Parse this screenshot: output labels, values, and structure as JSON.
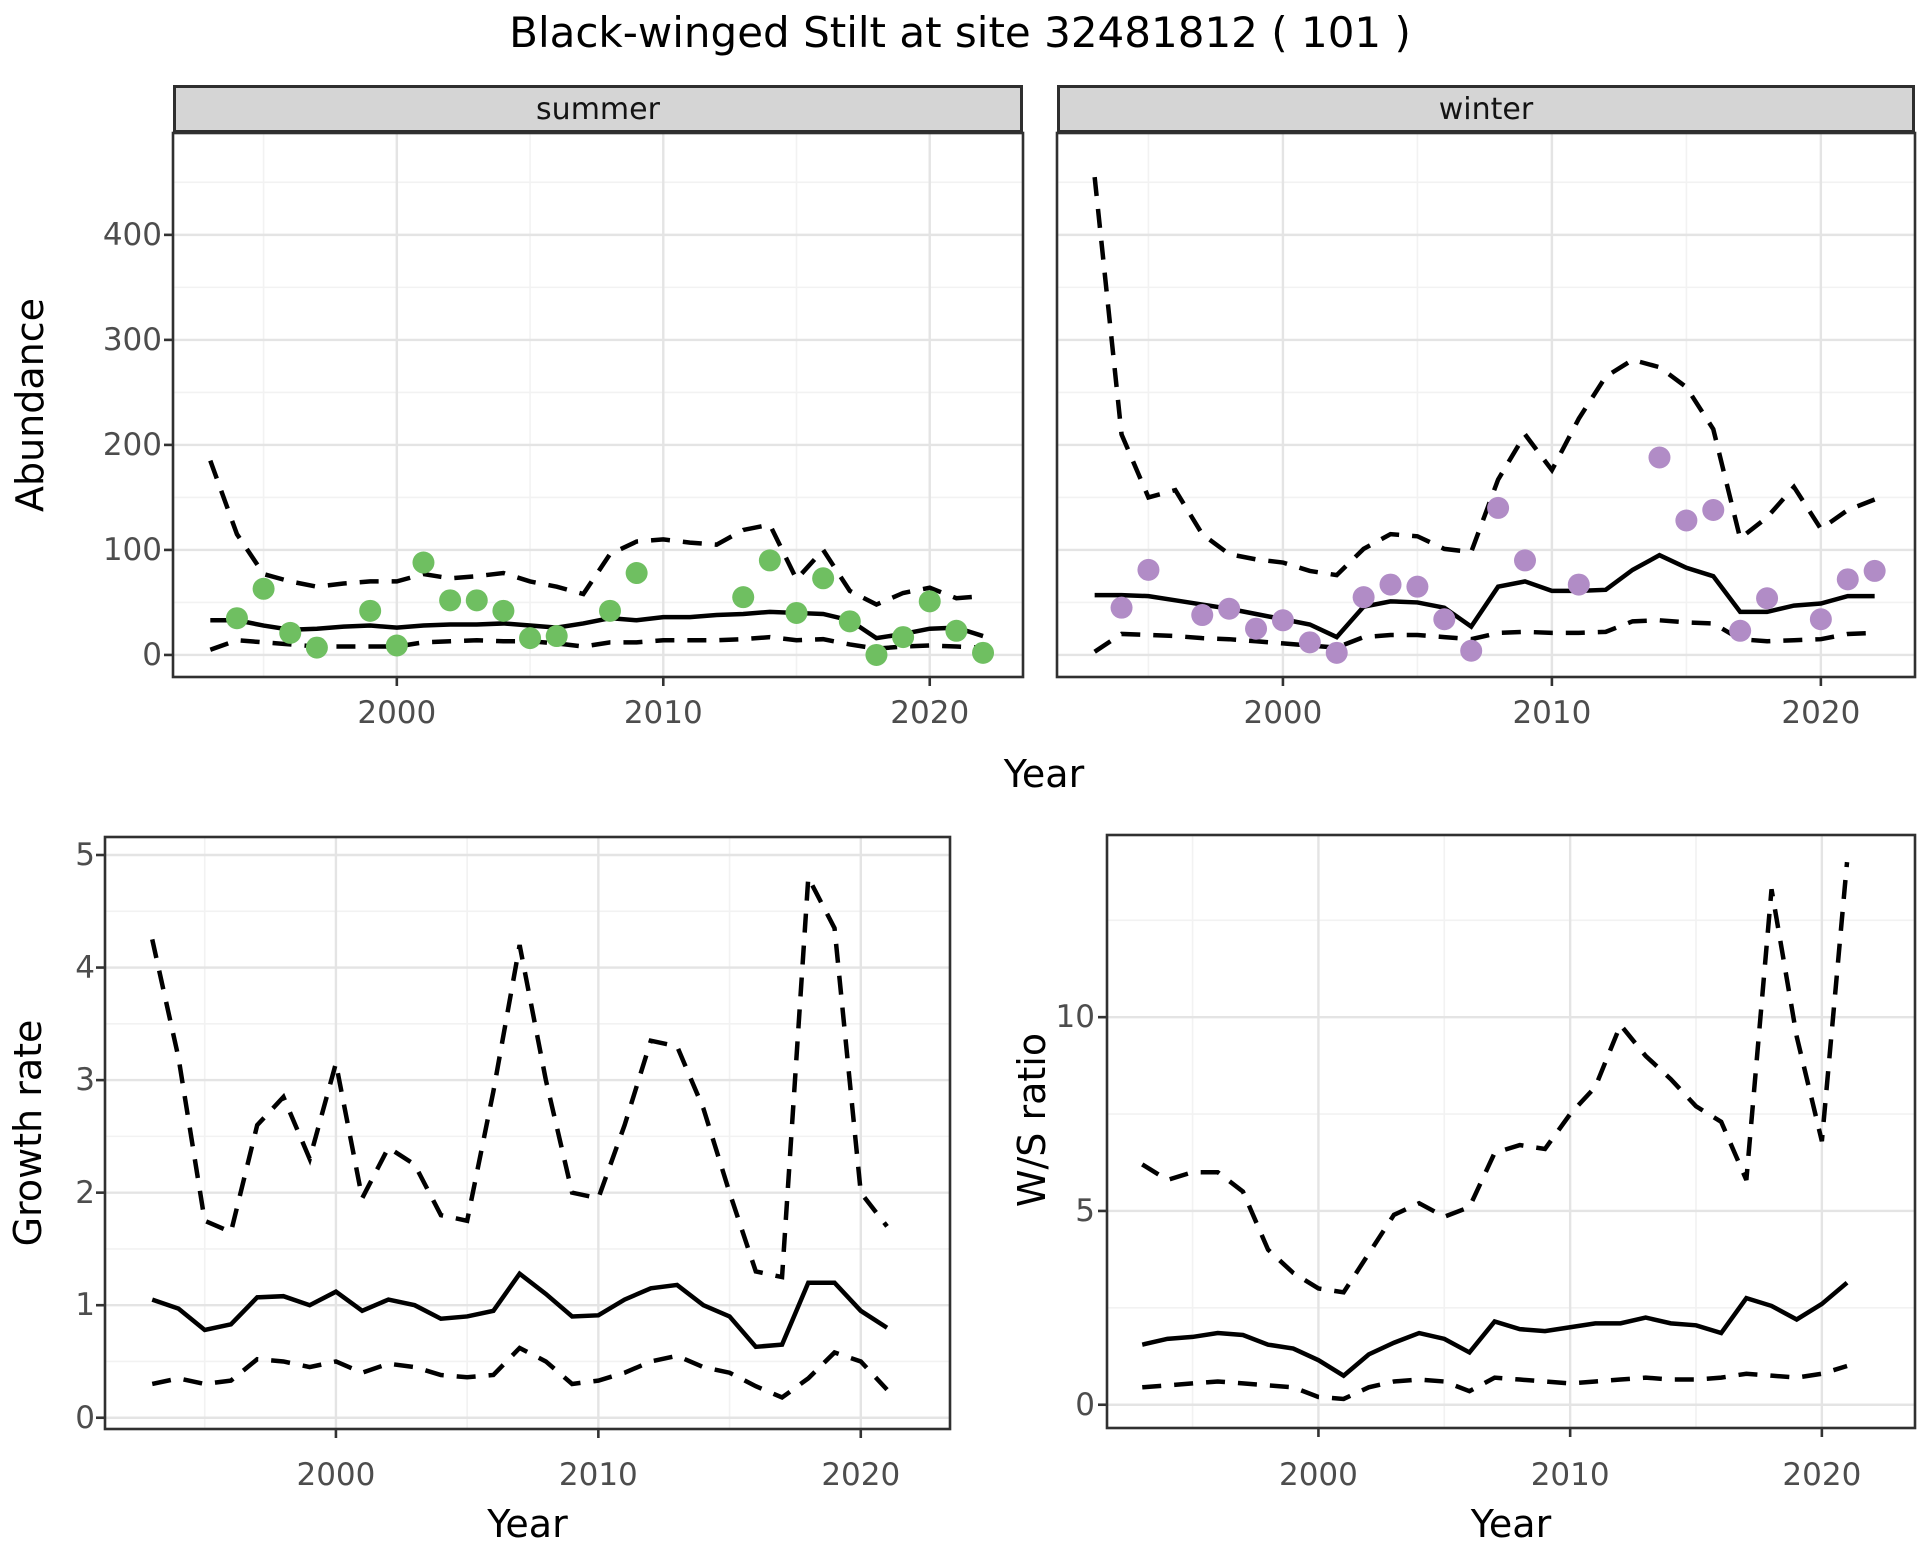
{
  "title": "Black-winged Stilt at site 32481812 ( 101 )",
  "top_row": {
    "ylabel": "Abundance",
    "xlabel": "Year"
  },
  "bottom_left": {
    "ylabel": "Growth rate",
    "xlabel": "Year"
  },
  "bottom_right": {
    "ylabel": "W/S ratio",
    "xlabel": "Year"
  },
  "colors": {
    "summer_points": "#6fbf61",
    "winter_points": "#b18cc6",
    "line": "#000000",
    "panel_border": "#303030",
    "strip_bg": "#d5d5d5",
    "grid_major": "#e4e4e4",
    "grid_minor": "#f2f2f2",
    "tick_text": "#4d4d4d"
  },
  "chart_data": [
    {
      "type": "line",
      "facet": "summer",
      "title": "Abundance - summer facet",
      "xlabel": "Year",
      "ylabel": "Abundance",
      "xlim": [
        1991.6,
        2023.5
      ],
      "ylim": [
        -21,
        497
      ],
      "xticks": [
        2000,
        2010,
        2020
      ],
      "yticks": [
        0,
        100,
        200,
        300,
        400
      ],
      "xticks_minor": [
        1995,
        2005,
        2015
      ],
      "yticks_minor": [
        50,
        150,
        250,
        350,
        450
      ],
      "x": [
        1993,
        1994,
        1995,
        1996,
        1997,
        1998,
        1999,
        2000,
        2001,
        2002,
        2003,
        2004,
        2005,
        2006,
        2007,
        2008,
        2009,
        2010,
        2011,
        2012,
        2013,
        2014,
        2015,
        2016,
        2017,
        2018,
        2019,
        2020,
        2021,
        2022
      ],
      "series": [
        {
          "name": "median",
          "style": "solid",
          "values": [
            33,
            33,
            28,
            24,
            25,
            27,
            28,
            26,
            28,
            29,
            29,
            30,
            28,
            26,
            30,
            35,
            33,
            36,
            36,
            38,
            39,
            41,
            40,
            39,
            33,
            16,
            20,
            25,
            26,
            18
          ]
        },
        {
          "name": "upper_ci",
          "style": "dashed",
          "values": [
            185,
            115,
            77,
            70,
            65,
            68,
            70,
            70,
            77,
            73,
            75,
            78,
            70,
            65,
            58,
            96,
            108,
            110,
            107,
            105,
            119,
            124,
            72,
            100,
            61,
            48,
            59,
            64,
            54,
            56
          ]
        },
        {
          "name": "lower_ci",
          "style": "dashed",
          "values": [
            5,
            14,
            12,
            10,
            8,
            8,
            8,
            8,
            12,
            13,
            14,
            13,
            13,
            11,
            8,
            12,
            12,
            14,
            14,
            14,
            15,
            17,
            14,
            15,
            10,
            6,
            8,
            9,
            8,
            7
          ]
        }
      ],
      "points": {
        "color": "#6fbf61",
        "x": [
          1994,
          1995,
          1996,
          1997,
          1999,
          2000,
          2001,
          2002,
          2003,
          2004,
          2005,
          2006,
          2008,
          2009,
          2013,
          2014,
          2015,
          2016,
          2017,
          2018,
          2019,
          2020,
          2021,
          2022
        ],
        "y": [
          35,
          63,
          21,
          7,
          42,
          9,
          88,
          52,
          52,
          42,
          16,
          18,
          42,
          78,
          55,
          90,
          40,
          73,
          32,
          0,
          17,
          51,
          23,
          2
        ]
      }
    },
    {
      "type": "line",
      "facet": "winter",
      "title": "Abundance - winter facet",
      "xlabel": "Year",
      "ylabel": "Abundance",
      "xlim": [
        1991.6,
        2023.5
      ],
      "ylim": [
        -21,
        497
      ],
      "xticks": [
        2000,
        2010,
        2020
      ],
      "yticks": [
        0,
        100,
        200,
        300,
        400
      ],
      "xticks_minor": [
        1995,
        2005,
        2015
      ],
      "yticks_minor": [
        50,
        150,
        250,
        350,
        450
      ],
      "x": [
        1993,
        1994,
        1995,
        1996,
        1997,
        1998,
        1999,
        2000,
        2001,
        2002,
        2003,
        2004,
        2005,
        2006,
        2007,
        2008,
        2009,
        2010,
        2011,
        2012,
        2013,
        2014,
        2015,
        2016,
        2017,
        2018,
        2019,
        2020,
        2021,
        2022
      ],
      "series": [
        {
          "name": "median",
          "style": "solid",
          "values": [
            57,
            57,
            56,
            52,
            48,
            44,
            39,
            34,
            29,
            17,
            46,
            51,
            50,
            45,
            27,
            65,
            70,
            61,
            61,
            62,
            81,
            95,
            83,
            75,
            41,
            41,
            47,
            49,
            56,
            56
          ]
        },
        {
          "name": "upper_ci",
          "style": "dashed",
          "values": [
            455,
            210,
            150,
            157,
            115,
            96,
            91,
            88,
            80,
            76,
            101,
            115,
            113,
            101,
            98,
            167,
            210,
            176,
            225,
            265,
            281,
            274,
            255,
            215,
            111,
            131,
            160,
            120,
            138,
            148
          ]
        },
        {
          "name": "lower_ci",
          "style": "dashed",
          "values": [
            3,
            20,
            19,
            18,
            16,
            15,
            13,
            11,
            9,
            7,
            17,
            19,
            19,
            17,
            15,
            21,
            22,
            21,
            21,
            22,
            32,
            33,
            31,
            30,
            15,
            13,
            14,
            15,
            20,
            21
          ]
        }
      ],
      "points": {
        "color": "#b18cc6",
        "x": [
          1994,
          1995,
          1997,
          1998,
          1999,
          2000,
          2001,
          2002,
          2003,
          2004,
          2005,
          2006,
          2007,
          2008,
          2009,
          2011,
          2014,
          2015,
          2016,
          2017,
          2018,
          2020,
          2021,
          2022
        ],
        "y": [
          45,
          81,
          38,
          44,
          25,
          33,
          12,
          2,
          55,
          67,
          65,
          34,
          4,
          140,
          90,
          67,
          188,
          128,
          138,
          23,
          54,
          34,
          72,
          80
        ]
      }
    },
    {
      "type": "line",
      "facet": null,
      "title": "Growth rate",
      "xlabel": "Year",
      "ylabel": "Growth rate",
      "xlim": [
        1991.2,
        2023.4
      ],
      "ylim": [
        -0.1,
        5.16
      ],
      "xticks": [
        2000,
        2010,
        2020
      ],
      "yticks": [
        0,
        1,
        2,
        3,
        4,
        5
      ],
      "xticks_minor": [
        1995,
        2005,
        2015
      ],
      "yticks_minor": [
        0.5,
        1.5,
        2.5,
        3.5,
        4.5
      ],
      "x": [
        1993,
        1994,
        1995,
        1996,
        1997,
        1998,
        1999,
        2000,
        2001,
        2002,
        2003,
        2004,
        2005,
        2006,
        2007,
        2008,
        2009,
        2010,
        2011,
        2012,
        2013,
        2014,
        2015,
        2016,
        2017,
        2018,
        2019,
        2020,
        2021
      ],
      "series": [
        {
          "name": "median",
          "style": "solid",
          "values": [
            1.05,
            0.97,
            0.78,
            0.83,
            1.07,
            1.08,
            1.0,
            1.12,
            0.95,
            1.05,
            1.0,
            0.88,
            0.9,
            0.95,
            1.28,
            1.1,
            0.9,
            0.91,
            1.05,
            1.15,
            1.18,
            1.0,
            0.9,
            0.63,
            0.65,
            1.2,
            1.2,
            0.95,
            0.8
          ]
        },
        {
          "name": "upper_ci",
          "style": "dashed",
          "values": [
            4.25,
            3.2,
            1.75,
            1.65,
            2.6,
            2.85,
            2.3,
            3.15,
            1.95,
            2.4,
            2.25,
            1.8,
            1.75,
            2.9,
            4.2,
            3.0,
            2.0,
            1.95,
            2.6,
            3.35,
            3.3,
            2.75,
            2.0,
            1.3,
            1.25,
            4.8,
            4.35,
            2.0,
            1.7
          ]
        },
        {
          "name": "lower_ci",
          "style": "dashed",
          "values": [
            0.3,
            0.35,
            0.3,
            0.33,
            0.52,
            0.5,
            0.45,
            0.5,
            0.4,
            0.48,
            0.45,
            0.38,
            0.36,
            0.38,
            0.62,
            0.5,
            0.3,
            0.33,
            0.4,
            0.5,
            0.55,
            0.45,
            0.4,
            0.28,
            0.18,
            0.35,
            0.58,
            0.5,
            0.25
          ]
        }
      ],
      "points": null
    },
    {
      "type": "line",
      "facet": null,
      "title": "W/S ratio",
      "xlabel": "Year",
      "ylabel": "W/S ratio",
      "xlim": [
        1991.6,
        2023.7
      ],
      "ylim": [
        -0.6,
        14.7
      ],
      "xticks": [
        2000,
        2010,
        2020
      ],
      "yticks": [
        0,
        5,
        10
      ],
      "xticks_minor": [
        1995,
        2005,
        2015
      ],
      "yticks_minor": [
        2.5,
        7.5,
        12.5
      ],
      "x": [
        1993,
        1994,
        1995,
        1996,
        1997,
        1998,
        1999,
        2000,
        2001,
        2002,
        2003,
        2004,
        2005,
        2006,
        2007,
        2008,
        2009,
        2010,
        2011,
        2012,
        2013,
        2014,
        2015,
        2016,
        2017,
        2018,
        2019,
        2020,
        2021
      ],
      "series": [
        {
          "name": "median",
          "style": "solid",
          "values": [
            1.55,
            1.7,
            1.75,
            1.85,
            1.8,
            1.55,
            1.45,
            1.15,
            0.75,
            1.3,
            1.6,
            1.85,
            1.7,
            1.35,
            2.15,
            1.95,
            1.9,
            2.0,
            2.1,
            2.1,
            2.25,
            2.1,
            2.05,
            1.85,
            2.75,
            2.55,
            2.2,
            2.6,
            3.15
          ]
        },
        {
          "name": "upper_ci",
          "style": "dashed",
          "values": [
            6.2,
            5.8,
            6.0,
            6.0,
            5.5,
            4.0,
            3.4,
            3.0,
            2.9,
            3.9,
            4.9,
            5.2,
            4.85,
            5.1,
            6.5,
            6.7,
            6.6,
            7.5,
            8.2,
            9.8,
            9.0,
            8.4,
            7.7,
            7.3,
            5.8,
            13.3,
            9.5,
            6.8,
            14.0
          ]
        },
        {
          "name": "lower_ci",
          "style": "dashed",
          "values": [
            0.45,
            0.5,
            0.55,
            0.6,
            0.55,
            0.5,
            0.45,
            0.2,
            0.15,
            0.45,
            0.6,
            0.65,
            0.6,
            0.35,
            0.7,
            0.65,
            0.6,
            0.55,
            0.6,
            0.65,
            0.7,
            0.65,
            0.65,
            0.7,
            0.8,
            0.75,
            0.7,
            0.8,
            1.0
          ]
        }
      ],
      "points": null
    }
  ]
}
